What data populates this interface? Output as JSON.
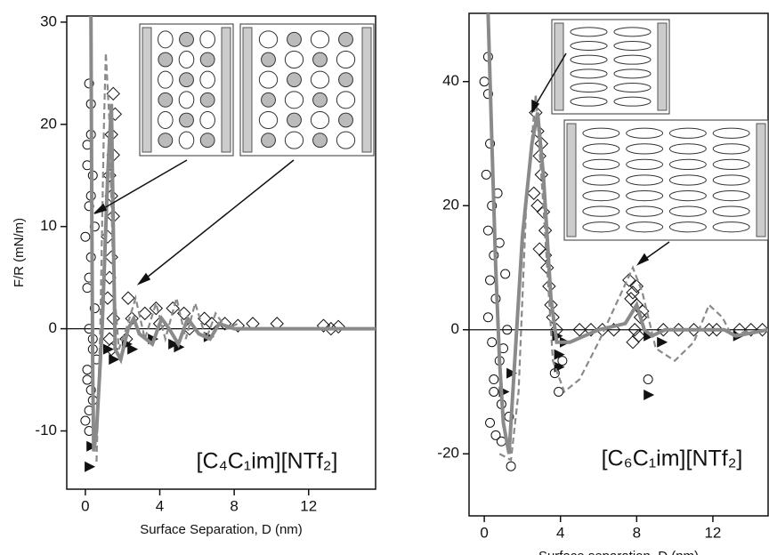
{
  "chart_data": [
    {
      "type": "scatter",
      "y_label": "F/R (mN/m)",
      "x_label": "Surface Separation, D (nm)",
      "annotation": "[C₄C₁im][NTf₂]",
      "xlim": [
        -1,
        15.6
      ],
      "ylim": [
        -15.7,
        30.6
      ],
      "xticks": [
        0,
        4,
        8,
        12
      ],
      "yticks": [
        -10,
        0,
        10,
        20,
        30
      ],
      "zero_line": true,
      "series": [
        {
          "kind": "circle",
          "color": "#111111",
          "x": [
            0.2,
            0.3,
            0.1,
            0.4,
            0.2,
            0.0,
            0.3,
            0.1,
            0.5,
            0.2,
            0.4,
            0.1,
            0.3,
            0.2,
            0.0,
            0.4,
            0.1,
            0.3,
            0.5,
            0.2,
            0.4,
            0.6,
            0.2,
            0.3,
            0.1
          ],
          "values": [
            24,
            22,
            18,
            15,
            12,
            9,
            7,
            4,
            2,
            0,
            -2,
            -4,
            -6,
            -8,
            -9,
            -7,
            16,
            19,
            10,
            5,
            -1,
            -3,
            -10,
            13,
            -5
          ]
        },
        {
          "kind": "diamond",
          "color": "#111111",
          "x": [
            1.5,
            1.6,
            1.4,
            1.5,
            1.3,
            1.4,
            1.5,
            1.2,
            1.4,
            1.3,
            1.2,
            1.5,
            1.3,
            1.4,
            2.3,
            2.5,
            2.2,
            3.2,
            3.8,
            4.0,
            4.7,
            5.3,
            5.6,
            6.4,
            6.8,
            7.5,
            8.2,
            9.0,
            10.3,
            12.8,
            13.2,
            13.6
          ],
          "values": [
            23,
            21,
            19,
            17,
            15,
            13,
            11,
            9,
            7,
            5,
            3,
            1,
            -1,
            -2,
            3,
            1,
            -1,
            1.5,
            2,
            0.5,
            2,
            1.5,
            0,
            1,
            0.5,
            0.5,
            0.3,
            0.5,
            0.5,
            0.3,
            0,
            0.2
          ]
        },
        {
          "kind": "triangle",
          "color": "#111111",
          "x": [
            0.3,
            0.2,
            1.2,
            1.5,
            2.2,
            2.5,
            3.6,
            4.7,
            5.0,
            6.6
          ],
          "values": [
            -11.5,
            -13.5,
            -2,
            -3,
            -1.5,
            -2,
            -1,
            -1.5,
            -1.8,
            -0.8
          ]
        },
        {
          "kind": "solid",
          "color": "#8a8a8a",
          "x": [
            0.3,
            0.35,
            0.4,
            0.45,
            0.6,
            0.9,
            1.2,
            1.4,
            1.5,
            1.6,
            1.9,
            2.3,
            2.6,
            2.9,
            3.6,
            4.1,
            4.5,
            5.0,
            5.5,
            6.1,
            6.7,
            7.2,
            8,
            15.6
          ],
          "values": [
            30.6,
            10,
            -5,
            -12,
            -10,
            0,
            15,
            22,
            10,
            -2,
            -3,
            0,
            1,
            -0.5,
            -1.5,
            1,
            0,
            -1.5,
            1,
            -0.5,
            -1,
            0.5,
            0,
            0
          ]
        },
        {
          "kind": "dashed",
          "color": "#8a8a8a",
          "x": [
            0.6,
            0.8,
            1.0,
            1.1,
            1.3,
            1.5,
            1.8,
            2.2,
            2.7,
            3.2,
            3.8,
            4.3,
            4.9,
            5.4,
            5.9,
            6.5,
            7.0,
            7.6,
            8.2
          ],
          "values": [
            -13,
            0,
            20,
            27,
            20,
            5,
            -2,
            0,
            3,
            -1,
            2.5,
            -1,
            3,
            -1,
            2.5,
            -1,
            1.5,
            0,
            0.5
          ]
        }
      ]
    },
    {
      "type": "scatter",
      "x_label": "Surface separation, D (nm)",
      "annotation": "[C₆C₁im][NTf₂]",
      "xlim": [
        -0.8,
        14.9
      ],
      "ylim": [
        -30,
        51
      ],
      "xticks": [
        0,
        4,
        8,
        12
      ],
      "yticks": [
        -20,
        0,
        20,
        40
      ],
      "zero_line": true,
      "series": [
        {
          "kind": "circle",
          "color": "#111111",
          "x": [
            0.0,
            0.2,
            0.3,
            0.1,
            0.4,
            0.2,
            0.5,
            0.3,
            0.6,
            0.2,
            0.4,
            0.8,
            0.5,
            0.9,
            0.3,
            0.6,
            1.0,
            0.7,
            1.2,
            1.4,
            0.5,
            0.8,
            1.1,
            3.9,
            4.1,
            3.7,
            8.6,
            0.2,
            0.9,
            1.3
          ],
          "values": [
            40,
            38,
            30,
            25,
            20,
            16,
            12,
            8,
            5,
            2,
            -2,
            -5,
            -8,
            -12,
            -15,
            -17,
            -3,
            22,
            0,
            -22,
            -10,
            14,
            9,
            -10,
            -5,
            -7,
            -8,
            44,
            -18,
            -14
          ]
        },
        {
          "kind": "diamond",
          "color": "#111111",
          "x": [
            2.7,
            2.8,
            2.9,
            3.0,
            2.6,
            3.1,
            3.2,
            2.9,
            3.3,
            3.4,
            3.5,
            3.0,
            3.6,
            3.8,
            2.8,
            3.2,
            7.6,
            7.8,
            8.0,
            8.2,
            7.9,
            8.1,
            7.7,
            8.3,
            8.0,
            7.8,
            5.0,
            5.6,
            6.2,
            6.8,
            9.4,
            10.2,
            11.0,
            11.8,
            12.2,
            13.4,
            14.0,
            14.6
          ],
          "values": [
            35,
            32,
            28,
            25,
            22,
            19,
            16,
            13,
            10,
            7,
            4,
            30,
            2,
            0,
            20,
            12,
            8,
            6,
            4,
            2,
            0,
            -1,
            5,
            3,
            7,
            -2,
            0,
            0,
            0,
            0,
            0,
            0,
            0,
            0,
            0,
            0,
            0,
            0
          ]
        },
        {
          "kind": "triangle",
          "color": "#111111",
          "x": [
            1.0,
            1.4,
            3.9,
            3.9,
            3.8,
            4.2,
            8.6,
            9.3,
            8.6,
            13.3
          ],
          "values": [
            -10,
            -7,
            -4,
            -6,
            -1,
            -2,
            -1,
            -2,
            -10.5,
            -1
          ]
        },
        {
          "kind": "solid",
          "color": "#8a8a8a",
          "x": [
            0.2,
            0.4,
            0.6,
            0.8,
            1.0,
            1.3,
            1.6,
            2.0,
            2.5,
            2.8,
            3.1,
            3.5,
            3.8,
            4.5,
            6,
            7.4,
            8,
            8.4,
            8.8,
            9.5,
            12.6,
            13.2,
            14.9
          ],
          "values": [
            51,
            30,
            10,
            -5,
            -15,
            -20,
            -5,
            15,
            30,
            35,
            25,
            5,
            -2,
            -2,
            0,
            1,
            4,
            0,
            -1,
            0,
            0,
            -1,
            0
          ]
        },
        {
          "kind": "dashed",
          "color": "#8a8a8a",
          "x": [
            0.8,
            1.4,
            1.8,
            2.2,
            2.7,
            3.1,
            3.6,
            4.2,
            5,
            6,
            7.2,
            7.8,
            8.3,
            9,
            10,
            11,
            11.8,
            12.5,
            13,
            14
          ],
          "values": [
            -20,
            -21,
            -10,
            20,
            38,
            20,
            -5,
            -10,
            -8,
            -2,
            6,
            10,
            6,
            -3,
            -5,
            -2,
            4,
            2,
            -1,
            0
          ]
        }
      ]
    }
  ]
}
